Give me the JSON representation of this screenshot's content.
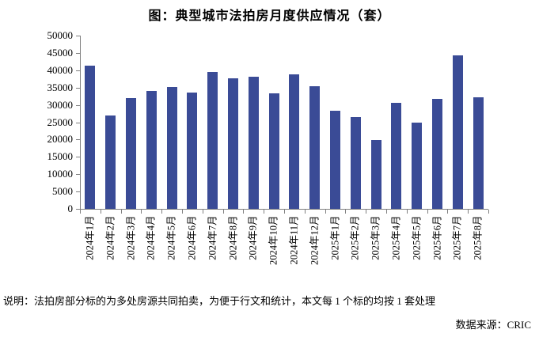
{
  "chart_data": {
    "type": "bar",
    "title": "图：典型城市法拍房月度供应情况（套）",
    "categories": [
      "2024年1月",
      "2024年2月",
      "2024年3月",
      "2024年4月",
      "2024年5月",
      "2024年6月",
      "2024年7月",
      "2024年8月",
      "2024年9月",
      "2024年10月",
      "2024年11月",
      "2024年12月",
      "2025年1月",
      "2025年2月",
      "2025年3月",
      "2025年4月",
      "2025年5月",
      "2025年6月",
      "2025年7月",
      "2025年8月"
    ],
    "values": [
      41300,
      26900,
      32000,
      34100,
      35100,
      33500,
      39400,
      37600,
      38200,
      33300,
      38900,
      35500,
      28400,
      26400,
      19900,
      30500,
      25000,
      31700,
      44200,
      32200
    ],
    "xlabel": "",
    "ylabel": "",
    "ylim": [
      0,
      50000
    ],
    "ytick_step": 5000,
    "grid": false,
    "legend_position": "none",
    "bar_color": "#3A4B96",
    "axis_color": "#808080"
  },
  "notes": {
    "description": "说明：法拍房部分标的为多处房源共同拍卖，为便于行文和统计，本文每 1 个标的均按 1 套处理",
    "source": "数据来源：CRIC"
  }
}
